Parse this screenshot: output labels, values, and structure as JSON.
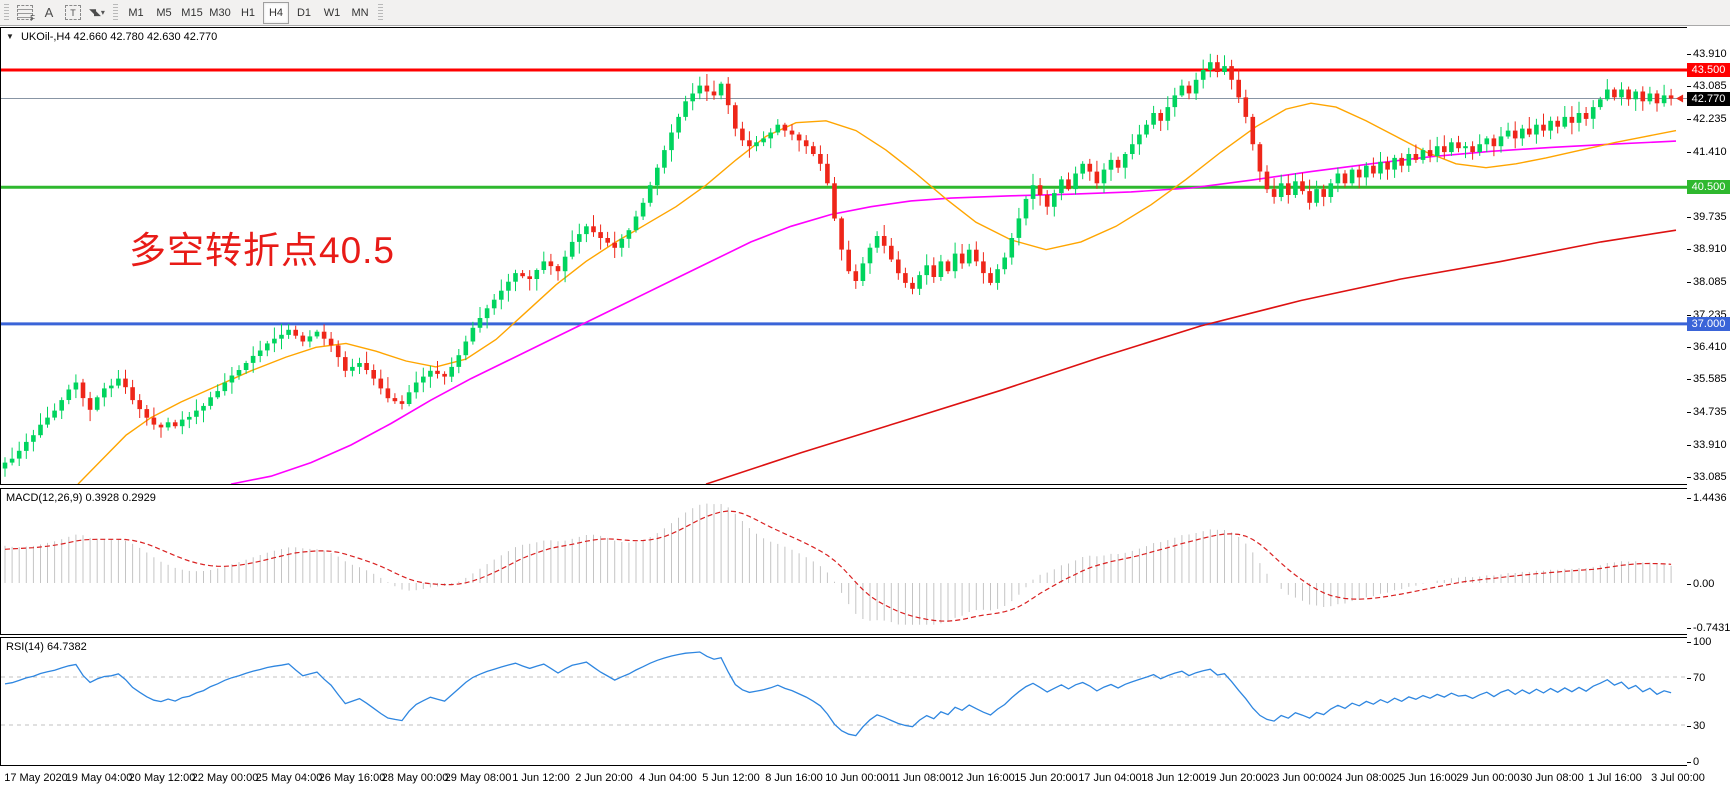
{
  "toolbar": {
    "tools": [
      {
        "id": "fibonacci",
        "glyph": "F"
      },
      {
        "id": "text",
        "glyph": "A"
      },
      {
        "id": "label",
        "glyph": "T"
      },
      {
        "id": "arrows",
        "glyph": "◥◣"
      }
    ],
    "timeframes": [
      "M1",
      "M5",
      "M15",
      "M30",
      "H1",
      "H4",
      "D1",
      "W1",
      "MN"
    ],
    "active_timeframe": "H4"
  },
  "chart": {
    "title": "UKOil-,H4 42.660 42.780 42.630 42.770",
    "symbol": "UKOil-",
    "period": "H4",
    "ohlc": {
      "open": "42.660",
      "high": "42.780",
      "low": "42.630",
      "close": "42.770"
    },
    "annotation": {
      "text": "多空转折点40.5",
      "color": "#e81b17"
    }
  },
  "chart_data": {
    "type": "candlestick",
    "title": "UKOil-,H4",
    "price_axis": {
      "ticks": [
        "43.910",
        "43.085",
        "42.235",
        "41.410",
        "39.735",
        "38.910",
        "38.085",
        "37.235",
        "36.410",
        "35.585",
        "34.735",
        "33.910",
        "33.085"
      ],
      "tick_values": [
        43.91,
        43.085,
        42.235,
        41.41,
        39.735,
        38.91,
        38.085,
        37.235,
        36.41,
        35.585,
        34.735,
        33.91,
        33.085
      ]
    },
    "hlines": [
      {
        "price": 43.5,
        "label": "43.500",
        "color": "#ff0000"
      },
      {
        "price": 40.5,
        "label": "40.500",
        "color": "#2eb82e"
      },
      {
        "price": 37.0,
        "label": "37.000",
        "color": "#3a64d8"
      }
    ],
    "bid": {
      "price": 42.77,
      "label": "42.770",
      "line_color": "#8895a4",
      "badge_color": "#000000"
    },
    "closes": [
      33.45,
      33.55,
      33.75,
      33.98,
      34.15,
      34.42,
      34.6,
      34.78,
      35.05,
      35.32,
      35.5,
      35.1,
      34.8,
      35.12,
      35.35,
      35.42,
      35.6,
      35.38,
      35.05,
      34.82,
      34.6,
      34.42,
      34.35,
      34.48,
      34.38,
      34.55,
      34.62,
      34.78,
      34.9,
      35.12,
      35.28,
      35.5,
      35.68,
      35.82,
      36.0,
      36.18,
      36.32,
      36.5,
      36.62,
      36.72,
      36.85,
      36.7,
      36.55,
      36.68,
      36.8,
      36.62,
      36.45,
      36.15,
      35.8,
      35.9,
      36.0,
      35.82,
      35.6,
      35.35,
      35.1,
      35.02,
      34.95,
      35.25,
      35.5,
      35.65,
      35.8,
      35.72,
      35.65,
      35.9,
      36.2,
      36.55,
      36.9,
      37.15,
      37.4,
      37.62,
      37.85,
      38.08,
      38.3,
      38.22,
      38.15,
      38.38,
      38.6,
      38.48,
      38.35,
      38.72,
      39.1,
      39.3,
      39.5,
      39.35,
      39.2,
      39.08,
      38.95,
      39.18,
      39.4,
      39.75,
      40.1,
      40.55,
      41.0,
      41.45,
      41.9,
      42.3,
      42.7,
      42.9,
      43.1,
      42.95,
      42.85,
      43.15,
      42.6,
      42.0,
      41.7,
      41.55,
      41.65,
      41.75,
      41.9,
      42.1,
      41.95,
      41.85,
      41.7,
      41.55,
      41.35,
      41.1,
      40.6,
      39.7,
      38.9,
      38.35,
      38.1,
      38.55,
      38.95,
      39.25,
      39.0,
      38.65,
      38.3,
      38.05,
      37.9,
      38.25,
      38.5,
      38.2,
      38.6,
      38.35,
      38.8,
      38.55,
      38.9,
      38.6,
      38.3,
      38.05,
      38.4,
      38.7,
      39.2,
      39.7,
      40.2,
      40.55,
      40.3,
      40.0,
      40.35,
      40.7,
      40.45,
      40.85,
      41.1,
      40.9,
      40.6,
      40.95,
      41.2,
      41.0,
      41.35,
      41.6,
      41.85,
      42.1,
      42.4,
      42.2,
      42.55,
      42.85,
      43.1,
      42.9,
      43.25,
      43.5,
      43.7,
      43.45,
      43.6,
      43.25,
      42.8,
      42.3,
      41.6,
      40.9,
      40.45,
      40.25,
      40.6,
      40.3,
      40.65,
      40.4,
      40.1,
      40.45,
      40.25,
      40.6,
      40.85,
      40.6,
      40.95,
      40.75,
      41.05,
      40.85,
      41.15,
      40.95,
      41.25,
      41.05,
      41.35,
      41.2,
      41.45,
      41.3,
      41.55,
      41.4,
      41.65,
      41.5,
      41.55,
      41.4,
      41.6,
      41.75,
      41.55,
      41.8,
      41.95,
      41.75,
      42.0,
      41.85,
      42.1,
      41.95,
      42.2,
      42.05,
      42.3,
      42.15,
      42.4,
      42.25,
      42.55,
      42.75,
      43.0,
      42.8,
      43.0,
      42.75,
      42.95,
      42.7,
      42.9,
      42.65,
      42.85,
      42.77
    ],
    "ma": {
      "orange": [
        [
          77,
          32.9
        ],
        [
          100,
          33.5
        ],
        [
          125,
          34.15
        ],
        [
          150,
          34.6
        ],
        [
          180,
          35.0
        ],
        [
          215,
          35.4
        ],
        [
          250,
          35.8
        ],
        [
          285,
          36.15
        ],
        [
          315,
          36.4
        ],
        [
          345,
          36.5
        ],
        [
          375,
          36.3
        ],
        [
          405,
          36.05
        ],
        [
          435,
          35.9
        ],
        [
          465,
          36.1
        ],
        [
          495,
          36.6
        ],
        [
          525,
          37.3
        ],
        [
          555,
          38.0
        ],
        [
          585,
          38.6
        ],
        [
          615,
          39.1
        ],
        [
          645,
          39.55
        ],
        [
          675,
          40.0
        ],
        [
          705,
          40.55
        ],
        [
          735,
          41.2
        ],
        [
          765,
          41.8
        ],
        [
          795,
          42.15
        ],
        [
          825,
          42.2
        ],
        [
          855,
          41.95
        ],
        [
          885,
          41.45
        ],
        [
          915,
          40.85
        ],
        [
          945,
          40.2
        ],
        [
          975,
          39.6
        ],
        [
          1010,
          39.15
        ],
        [
          1045,
          38.9
        ],
        [
          1080,
          39.1
        ],
        [
          1115,
          39.5
        ],
        [
          1150,
          40.05
        ],
        [
          1185,
          40.7
        ],
        [
          1220,
          41.4
        ],
        [
          1255,
          42.05
        ],
        [
          1285,
          42.5
        ],
        [
          1310,
          42.65
        ],
        [
          1335,
          42.55
        ],
        [
          1365,
          42.2
        ],
        [
          1395,
          41.8
        ],
        [
          1425,
          41.4
        ],
        [
          1455,
          41.1
        ],
        [
          1485,
          41.0
        ],
        [
          1515,
          41.1
        ],
        [
          1545,
          41.25
        ],
        [
          1580,
          41.45
        ],
        [
          1615,
          41.65
        ],
        [
          1645,
          41.8
        ],
        [
          1675,
          41.95
        ]
      ],
      "magenta": [
        [
          230,
          32.9
        ],
        [
          270,
          33.1
        ],
        [
          310,
          33.45
        ],
        [
          350,
          33.9
        ],
        [
          390,
          34.45
        ],
        [
          430,
          35.05
        ],
        [
          470,
          35.6
        ],
        [
          510,
          36.1
        ],
        [
          550,
          36.6
        ],
        [
          590,
          37.1
        ],
        [
          630,
          37.6
        ],
        [
          670,
          38.1
        ],
        [
          710,
          38.6
        ],
        [
          750,
          39.1
        ],
        [
          790,
          39.5
        ],
        [
          830,
          39.8
        ],
        [
          870,
          40.0
        ],
        [
          910,
          40.15
        ],
        [
          950,
          40.22
        ],
        [
          1010,
          40.28
        ],
        [
          1070,
          40.32
        ],
        [
          1130,
          40.38
        ],
        [
          1190,
          40.48
        ],
        [
          1250,
          40.68
        ],
        [
          1310,
          40.9
        ],
        [
          1370,
          41.1
        ],
        [
          1430,
          41.28
        ],
        [
          1490,
          41.42
        ],
        [
          1550,
          41.52
        ],
        [
          1610,
          41.6
        ],
        [
          1675,
          41.68
        ]
      ],
      "red": [
        [
          705,
          32.9
        ],
        [
          800,
          33.7
        ],
        [
          900,
          34.5
        ],
        [
          1000,
          35.3
        ],
        [
          1100,
          36.15
        ],
        [
          1200,
          36.95
        ],
        [
          1300,
          37.6
        ],
        [
          1400,
          38.15
        ],
        [
          1500,
          38.6
        ],
        [
          1600,
          39.1
        ],
        [
          1675,
          39.4
        ]
      ]
    },
    "colors": {
      "up": "#00d45e",
      "down": "#ee2619",
      "ma_fast": "#ffa500",
      "ma_mid": "#ff00ff",
      "ma_slow": "#dd1111",
      "hist": "#c4c4c4",
      "signal": "#d92121",
      "rsi": "#2e86e0",
      "levels": "#c0c0c0"
    },
    "time_labels": [
      "17 May 2020",
      "19 May 04:00",
      "20 May 12:00",
      "22 May 00:00",
      "25 May 04:00",
      "26 May 16:00",
      "28 May 00:00",
      "29 May 08:00",
      "1 Jun 12:00",
      "2 Jun 20:00",
      "4 Jun 04:00",
      "5 Jun 12:00",
      "8 Jun 16:00",
      "10 Jun 00:00",
      "11 Jun 08:00",
      "12 Jun 16:00",
      "15 Jun 20:00",
      "17 Jun 04:00",
      "18 Jun 12:00",
      "19 Jun 20:00",
      "23 Jun 00:00",
      "24 Jun 08:00",
      "25 Jun 16:00",
      "29 Jun 00:00",
      "30 Jun 08:00",
      "1 Jul 16:00",
      "3 Jul 00:00"
    ],
    "macd": {
      "label": "MACD(12,26,9)",
      "value_main": "0.3928",
      "value_signal": "0.2929",
      "axis": [
        "1.4436",
        "0.00",
        "-0.7431"
      ],
      "axis_values": [
        1.4436,
        0.0,
        -0.7431
      ]
    },
    "rsi": {
      "label": "RSI(14)",
      "value": "64.7382",
      "axis": [
        "100",
        "70",
        "30",
        "0"
      ],
      "axis_values": [
        100,
        70,
        30,
        0
      ],
      "levels": [
        70,
        30
      ]
    }
  }
}
